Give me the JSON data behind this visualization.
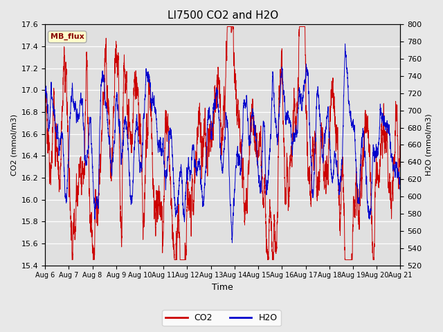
{
  "title": "LI7500 CO2 and H2O",
  "xlabel": "Time",
  "ylabel_left": "CO2 (mmol/m3)",
  "ylabel_right": "H2O (mmol/m3)",
  "co2_ylim": [
    15.4,
    17.6
  ],
  "h2o_ylim": [
    520,
    800
  ],
  "co2_yticks": [
    15.4,
    15.6,
    15.8,
    16.0,
    16.2,
    16.4,
    16.6,
    16.8,
    17.0,
    17.2,
    17.4,
    17.6
  ],
  "h2o_yticks": [
    520,
    540,
    560,
    580,
    600,
    620,
    640,
    660,
    680,
    700,
    720,
    740,
    760,
    780,
    800
  ],
  "co2_color": "#cc0000",
  "h2o_color": "#0000cc",
  "fig_bg_color": "#e8e8e8",
  "plot_bg_color": "#e0e0e0",
  "annotation_text": "MB_flux",
  "annotation_bg": "#ffffcc",
  "annotation_fg": "#880000",
  "legend_co2": "CO2",
  "legend_h2o": "H2O",
  "xtick_labels": [
    "Aug 6",
    "Aug 7",
    "Aug 8",
    "Aug 9",
    "Aug 10",
    "Aug 11",
    "Aug 12",
    "Aug 13",
    "Aug 14",
    "Aug 15",
    "Aug 16",
    "Aug 17",
    "Aug 18",
    "Aug 19",
    "Aug 20",
    "Aug 21"
  ],
  "n_points": 5000,
  "seed": 7
}
